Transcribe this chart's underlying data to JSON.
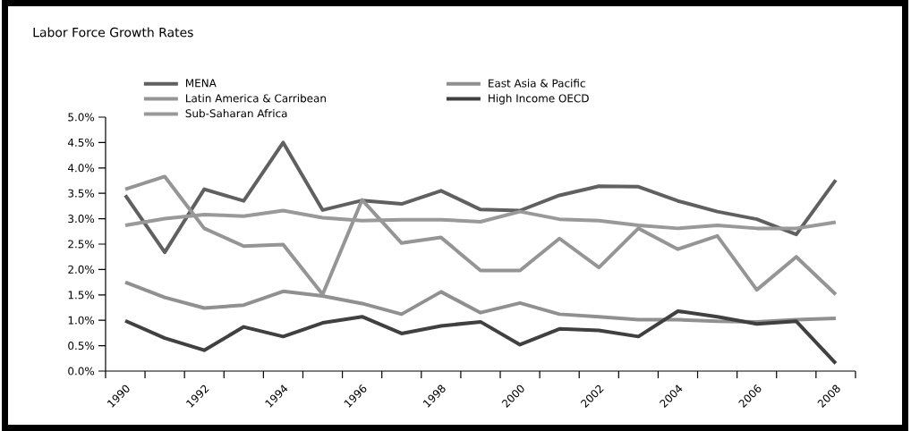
{
  "chart_data": {
    "type": "line",
    "title": "Labor Force Growth Rates",
    "categories": [
      "1990",
      null,
      "1992",
      null,
      "1994",
      null,
      "1996",
      null,
      "1998",
      null,
      "2000",
      null,
      "2002",
      null,
      "2004",
      null,
      "2006",
      null,
      "2008"
    ],
    "series": [
      {
        "name": "MENA",
        "color": "#606060",
        "values": [
          3.46,
          2.34,
          3.58,
          3.35,
          4.5,
          3.17,
          3.36,
          3.29,
          3.55,
          3.18,
          3.16,
          3.46,
          3.64,
          3.63,
          3.35,
          3.14,
          2.99,
          2.69,
          3.76
        ]
      },
      {
        "name": "East Asia & Pacific",
        "color": "#909090",
        "values": [
          1.75,
          1.45,
          1.24,
          1.3,
          1.57,
          1.48,
          1.33,
          1.12,
          1.56,
          1.15,
          1.34,
          1.12,
          1.07,
          1.01,
          1.01,
          0.98,
          0.97,
          1.01,
          1.04
        ]
      },
      {
        "name": "Latin America & Carribean",
        "color": "#959595",
        "values": [
          3.58,
          3.83,
          2.81,
          2.46,
          2.49,
          1.51,
          3.37,
          2.52,
          2.63,
          1.98,
          1.98,
          2.61,
          2.04,
          2.81,
          2.4,
          2.66,
          1.6,
          2.25,
          1.51
        ]
      },
      {
        "name": "High Income OECD",
        "color": "#404040",
        "values": [
          0.99,
          0.65,
          0.41,
          0.87,
          0.68,
          0.95,
          1.07,
          0.74,
          0.89,
          0.97,
          0.52,
          0.83,
          0.8,
          0.68,
          1.18,
          1.07,
          0.93,
          0.98,
          0.15
        ]
      },
      {
        "name": "Sub-Saharan Africa",
        "color": "#999999",
        "values": [
          2.87,
          3.0,
          3.08,
          3.05,
          3.16,
          3.02,
          2.96,
          2.98,
          2.98,
          2.94,
          3.14,
          2.99,
          2.96,
          2.87,
          2.81,
          2.87,
          2.81,
          2.81,
          2.93
        ]
      }
    ],
    "ylim": [
      0,
      5
    ],
    "yticks": [
      {
        "value": 0,
        "label": "0.0%"
      },
      {
        "value": 0.5,
        "label": "0.5%"
      },
      {
        "value": 1,
        "label": "1.0%"
      },
      {
        "value": 1.5,
        "label": "1.5%"
      },
      {
        "value": 2,
        "label": "2.0%"
      },
      {
        "value": 2.5,
        "label": "2.5%"
      },
      {
        "value": 3,
        "label": "3.0%"
      },
      {
        "value": 3.5,
        "label": "3.5%"
      },
      {
        "value": 4,
        "label": "4.0%"
      },
      {
        "value": 4.5,
        "label": "4.5%"
      },
      {
        "value": 5,
        "label": "5.0%"
      }
    ],
    "legend": "top",
    "line_style": "solid"
  }
}
